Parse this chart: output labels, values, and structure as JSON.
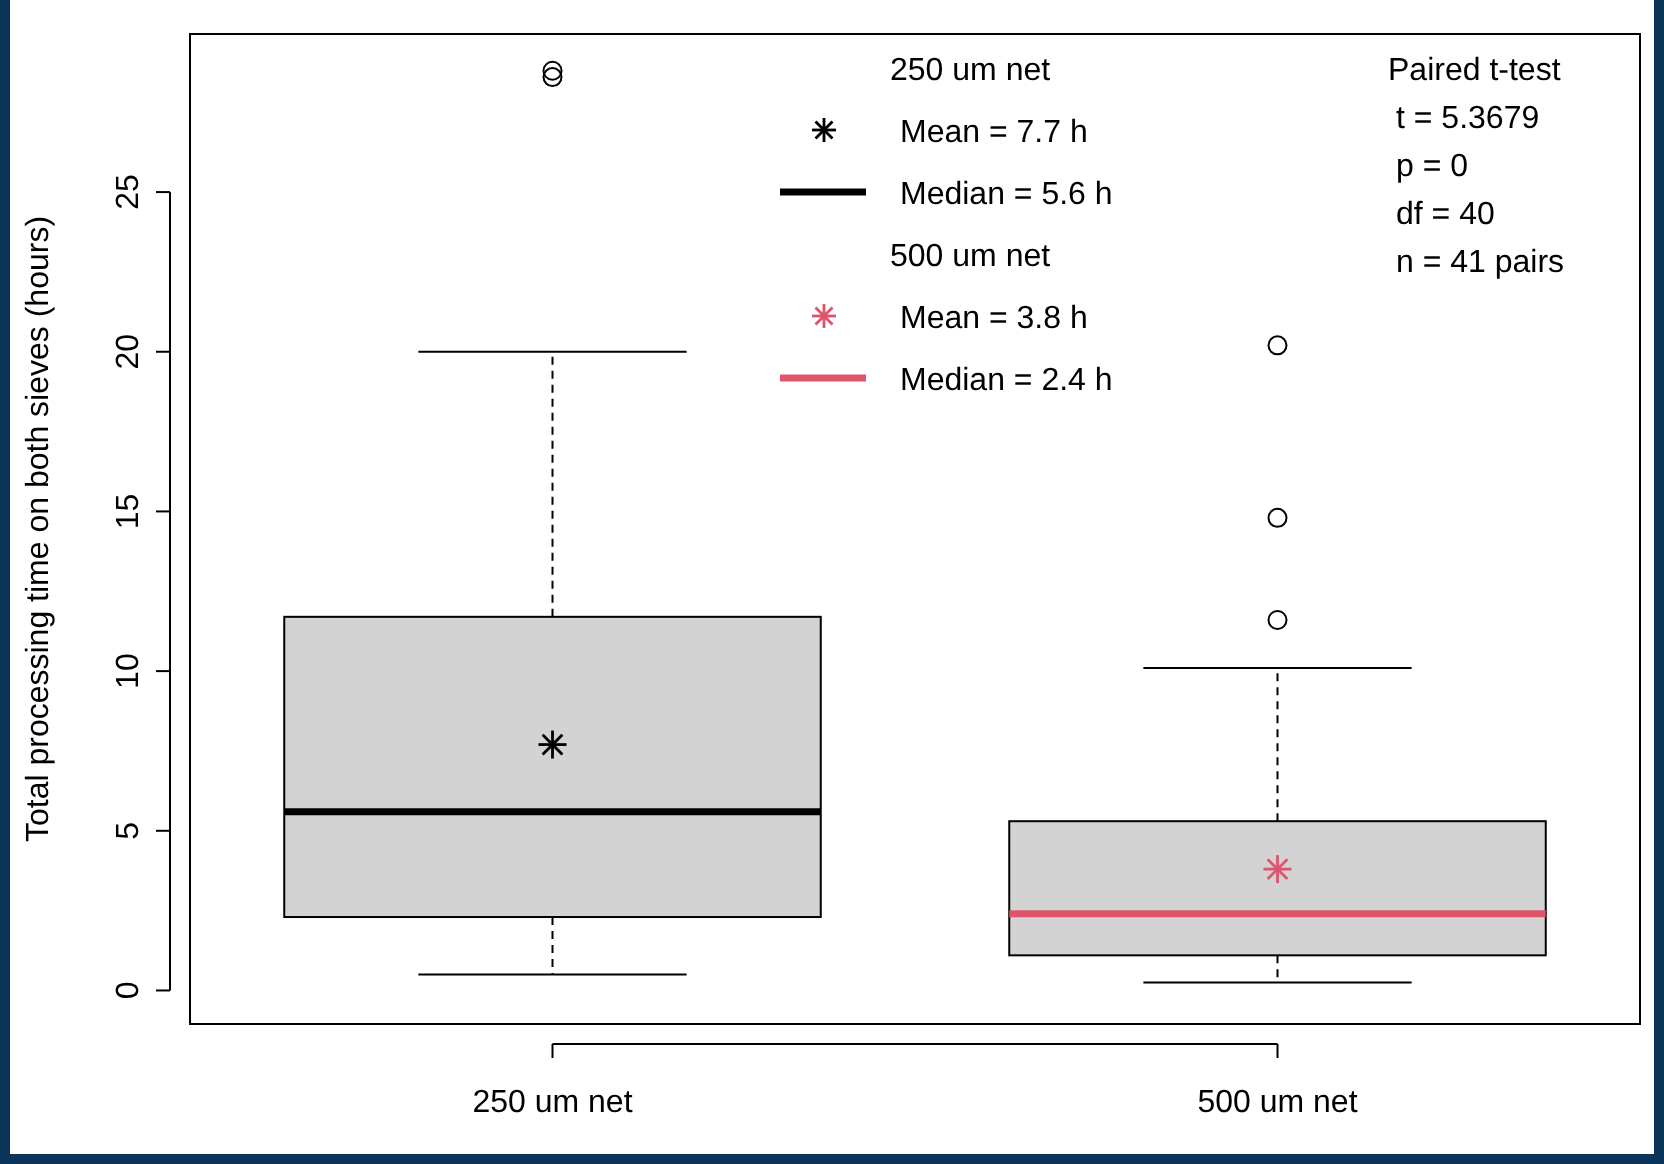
{
  "chart_data": {
    "type": "box",
    "ylabel": "Total processing time on both sieves (hours)",
    "categories": [
      "250 um net",
      "500 um net"
    ],
    "boxes": [
      {
        "low": 0.5,
        "q1": 2.3,
        "median": 5.6,
        "q3": 11.7,
        "high": 20,
        "mean": 7.7,
        "outliers": [
          28.6,
          28.8
        ]
      },
      {
        "low": 0.25,
        "q1": 1.1,
        "median": 2.4,
        "q3": 5.3,
        "high": 10.1,
        "mean": 3.8,
        "outliers": [
          11.6,
          14.8,
          20.2
        ]
      }
    ],
    "colors": [
      "#d3d3d3",
      "#d3d3d3"
    ],
    "ylim": [
      -1.05,
      29.95
    ],
    "yticks": [
      0,
      5,
      10,
      15,
      20,
      25
    ],
    "annotations": [
      "250 um net",
      "Mean = 7.7 h",
      "Median = 5.6 h",
      "500 um net",
      "Mean = 3.8 h",
      "Median = 2.4 h",
      "Paired t-test",
      "t = 5.3679",
      "p = 0",
      "df = 40",
      "n = 41 pairs"
    ]
  }
}
